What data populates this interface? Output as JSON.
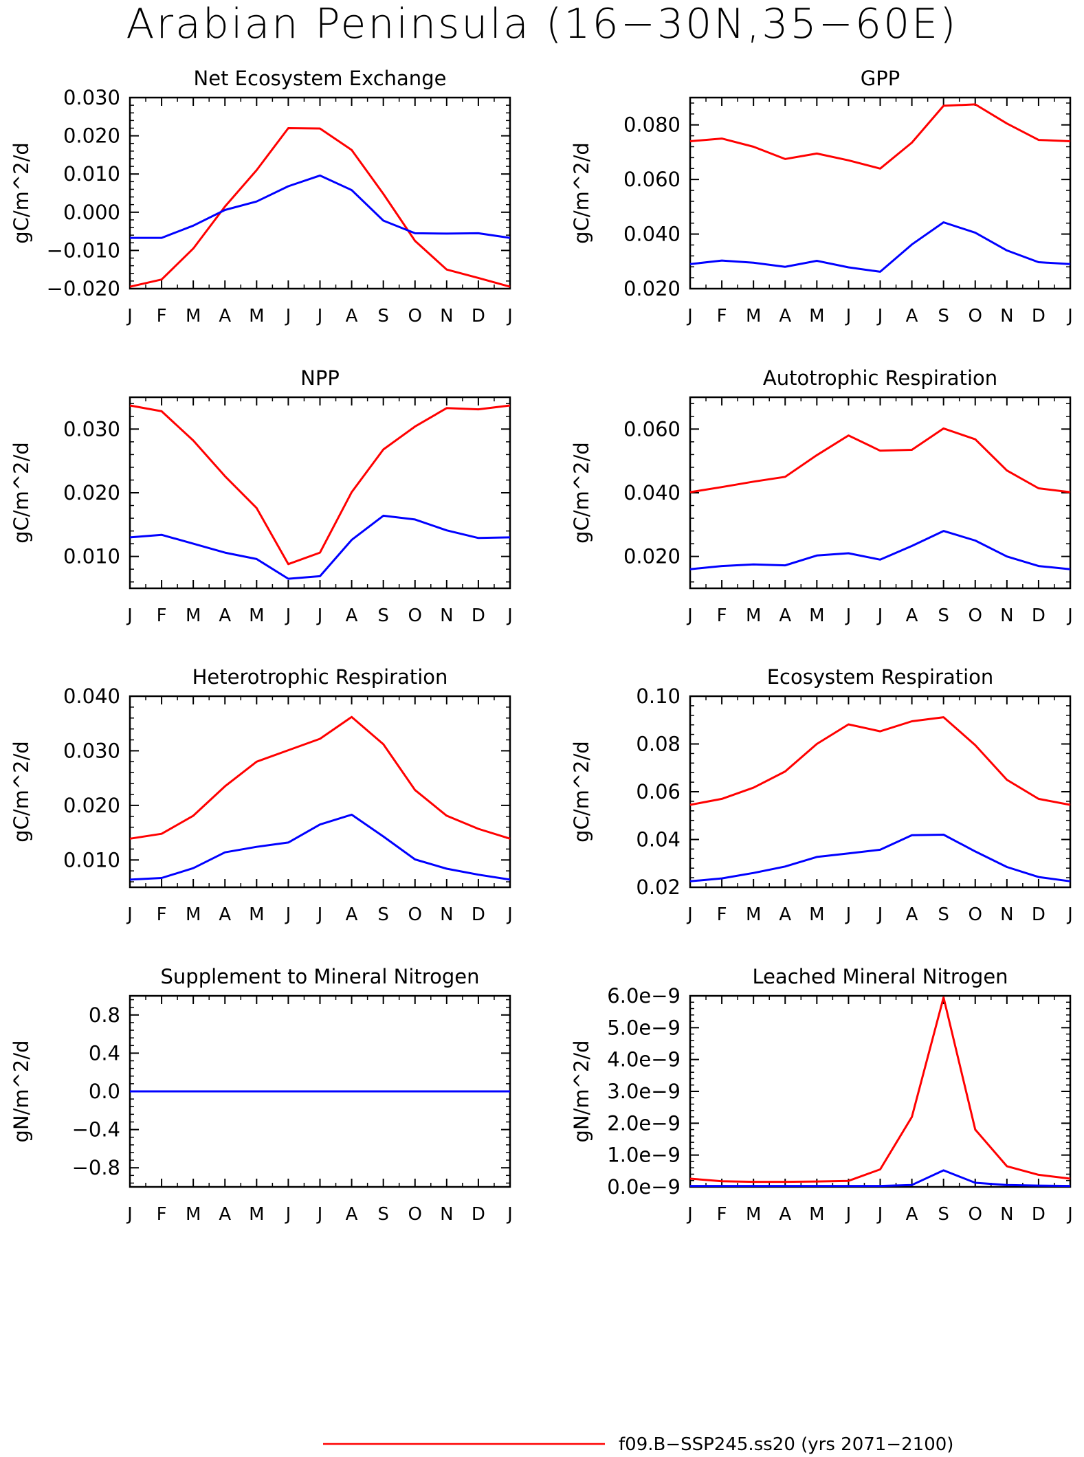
{
  "title": "Arabian Peninsula (16−30N,35−60E)",
  "months": [
    "J",
    "F",
    "M",
    "A",
    "M",
    "J",
    "J",
    "A",
    "S",
    "O",
    "N",
    "D",
    "J"
  ],
  "colors": {
    "series1": "#ff0000",
    "series2": "#0000ff",
    "axis": "#000000"
  },
  "legend": [
    {
      "label": "f09.B−SSP245.ss20 (yrs 2071−2100)",
      "color": "#ff0000"
    }
  ],
  "chart_data": [
    {
      "type": "line",
      "title": "Net Ecosystem Exchange",
      "ylabel": "gC/m^2/d",
      "ylim": [
        -0.02,
        0.03
      ],
      "yticks": [
        -0.02,
        -0.01,
        0,
        0.01,
        0.02,
        0.03
      ],
      "yticklabels": [
        "−0.020",
        "−0.010",
        "0.000",
        "0.010",
        "0.020",
        "0.030"
      ],
      "series": [
        {
          "color": "#ff0000",
          "values": [
            -0.0195,
            -0.0176,
            -0.0095,
            0.0015,
            0.011,
            0.022,
            0.0219,
            0.0163,
            0.0048,
            -0.0075,
            -0.015,
            -0.0172,
            -0.0195
          ]
        },
        {
          "color": "#0000ff",
          "values": [
            -0.0067,
            -0.0067,
            -0.0035,
            0.0006,
            0.0028,
            0.0068,
            0.0096,
            0.0058,
            -0.0022,
            -0.0055,
            -0.0056,
            -0.0055,
            -0.0067
          ]
        }
      ]
    },
    {
      "type": "line",
      "title": "GPP",
      "ylabel": "gC/m^2/d",
      "ylim": [
        0.02,
        0.09
      ],
      "yticks": [
        0.02,
        0.04,
        0.06,
        0.08
      ],
      "yticklabels": [
        "0.020",
        "0.040",
        "0.060",
        "0.080"
      ],
      "series": [
        {
          "color": "#ff0000",
          "values": [
            0.074,
            0.075,
            0.072,
            0.0675,
            0.0695,
            0.067,
            0.064,
            0.0735,
            0.087,
            0.0875,
            0.0805,
            0.0745,
            0.074
          ]
        },
        {
          "color": "#0000ff",
          "values": [
            0.029,
            0.0303,
            0.0295,
            0.028,
            0.0302,
            0.0278,
            0.0262,
            0.0362,
            0.0443,
            0.0405,
            0.034,
            0.0297,
            0.029
          ]
        }
      ]
    },
    {
      "type": "line",
      "title": "NPP",
      "ylabel": "gC/m^2/d",
      "ylim": [
        0.005,
        0.035
      ],
      "yticks": [
        0.01,
        0.02,
        0.03
      ],
      "yticklabels": [
        "0.010",
        "0.020",
        "0.030"
      ],
      "series": [
        {
          "color": "#ff0000",
          "values": [
            0.0337,
            0.0328,
            0.0282,
            0.0226,
            0.0176,
            0.0088,
            0.0106,
            0.0201,
            0.0268,
            0.0304,
            0.0333,
            0.0331,
            0.0337
          ]
        },
        {
          "color": "#0000ff",
          "values": [
            0.013,
            0.0134,
            0.012,
            0.0106,
            0.0096,
            0.0065,
            0.0069,
            0.0126,
            0.0164,
            0.0158,
            0.0141,
            0.0129,
            0.013
          ]
        }
      ]
    },
    {
      "type": "line",
      "title": "Autotrophic Respiration",
      "ylabel": "gC/m^2/d",
      "ylim": [
        0.01,
        0.07
      ],
      "yticks": [
        0.02,
        0.04,
        0.06
      ],
      "yticklabels": [
        "0.020",
        "0.040",
        "0.060"
      ],
      "series": [
        {
          "color": "#ff0000",
          "values": [
            0.0402,
            0.0418,
            0.0435,
            0.045,
            0.0518,
            0.058,
            0.0532,
            0.0535,
            0.0602,
            0.0568,
            0.047,
            0.0414,
            0.0402
          ]
        },
        {
          "color": "#0000ff",
          "values": [
            0.016,
            0.017,
            0.0175,
            0.0172,
            0.0203,
            0.021,
            0.019,
            0.0233,
            0.028,
            0.025,
            0.02,
            0.017,
            0.016
          ]
        }
      ]
    },
    {
      "type": "line",
      "title": "Heterotrophic Respiration",
      "ylabel": "gC/m^2/d",
      "ylim": [
        0.005,
        0.04
      ],
      "yticks": [
        0.01,
        0.02,
        0.03,
        0.04
      ],
      "yticklabels": [
        "0.010",
        "0.020",
        "0.030",
        "0.040"
      ],
      "series": [
        {
          "color": "#ff0000",
          "values": [
            0.0139,
            0.0148,
            0.0181,
            0.0235,
            0.028,
            0.0301,
            0.0322,
            0.0362,
            0.0312,
            0.0228,
            0.0181,
            0.0157,
            0.0139
          ]
        },
        {
          "color": "#0000ff",
          "values": [
            0.0064,
            0.0067,
            0.0085,
            0.0114,
            0.0124,
            0.0132,
            0.0165,
            0.0183,
            0.0143,
            0.0101,
            0.0084,
            0.0073,
            0.0064
          ]
        }
      ]
    },
    {
      "type": "line",
      "title": "Ecosystem Respiration",
      "ylabel": "gC/m^2/d",
      "ylim": [
        0.02,
        0.1
      ],
      "yticks": [
        0.02,
        0.04,
        0.06,
        0.08,
        0.1
      ],
      "yticklabels": [
        "0.02",
        "0.04",
        "0.06",
        "0.08",
        "0.10"
      ],
      "series": [
        {
          "color": "#ff0000",
          "values": [
            0.0545,
            0.057,
            0.0617,
            0.0685,
            0.08,
            0.0882,
            0.0853,
            0.0895,
            0.0912,
            0.0795,
            0.065,
            0.057,
            0.0545
          ]
        },
        {
          "color": "#0000ff",
          "values": [
            0.0225,
            0.0237,
            0.026,
            0.0287,
            0.0327,
            0.0342,
            0.0357,
            0.0418,
            0.042,
            0.035,
            0.0285,
            0.0243,
            0.0225
          ]
        }
      ]
    },
    {
      "type": "line",
      "title": "Supplement to Mineral Nitrogen",
      "ylabel": "gN/m^2/d",
      "ylim": [
        -1.0,
        1.0
      ],
      "yticks": [
        -0.8,
        -0.4,
        0,
        0.4,
        0.8
      ],
      "yticklabels": [
        "−0.8",
        "−0.4",
        "0.0",
        "0.4",
        "0.8"
      ],
      "series": [
        {
          "color": "#ff0000",
          "values": [
            0,
            0,
            0,
            0,
            0,
            0,
            0,
            0,
            0,
            0,
            0,
            0,
            0
          ]
        },
        {
          "color": "#0000ff",
          "values": [
            0,
            0,
            0,
            0,
            0,
            0,
            0,
            0,
            0,
            0,
            0,
            0,
            0
          ]
        }
      ]
    },
    {
      "type": "line",
      "title": "Leached Mineral Nitrogen",
      "ylabel": "gN/m^2/d",
      "ylim": [
        0,
        6e-09
      ],
      "yticks": [
        0,
        1e-09,
        2e-09,
        3e-09,
        4e-09,
        5e-09,
        6e-09
      ],
      "yticklabels": [
        "0.0e−9",
        "1.0e−9",
        "2.0e−9",
        "3.0e−9",
        "4.0e−9",
        "5.0e−9",
        "6.0e−9"
      ],
      "series": [
        {
          "color": "#ff0000",
          "values": [
            2.6e-10,
            1.8e-10,
            1.6e-10,
            1.6e-10,
            1.7e-10,
            1.9e-10,
            5.5e-10,
            2.2e-09,
            5.95e-09,
            1.8e-09,
            6.5e-10,
            3.8e-10,
            2.6e-10
          ]
        },
        {
          "color": "#0000ff",
          "values": [
            3e-11,
            3e-11,
            3e-11,
            3e-11,
            3e-11,
            3e-11,
            3e-11,
            6e-11,
            5.2e-10,
            1.3e-10,
            6e-11,
            4e-11,
            3e-11
          ]
        }
      ]
    }
  ]
}
